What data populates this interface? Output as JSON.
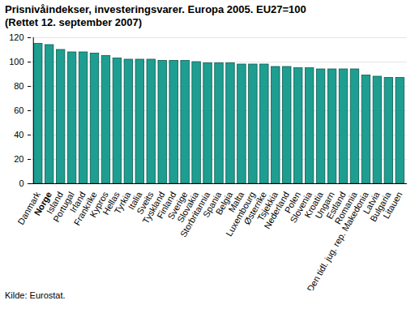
{
  "chart_data": {
    "type": "bar",
    "title": "Prisnivåindekser, investeringsvarer. Europa 2005. EU27=100",
    "subtitle": "(Rettet 12. september 2007)",
    "caption": "Kilde: Eurostat.",
    "categories": [
      "Danmark",
      "Norge",
      "Island",
      "Portugal",
      "Irland",
      "Frankrike",
      "Kypros",
      "Hellas",
      "Tyrkia",
      "Italia",
      "Sveits",
      "Tyskland",
      "Finland",
      "Sverige",
      "Slovakia",
      "Storbritannia",
      "Spania",
      "Belgia",
      "Malta",
      "Luxembourg",
      "Østerrike",
      "Tsjekkia",
      "Nederland",
      "Polen",
      "Slovenia",
      "Kroatia",
      "Ungarn",
      "Estland",
      "Romania",
      "Den tidl. jug. rep. Makedonia",
      "Latvia",
      "Bulgaria",
      "Litauen"
    ],
    "values": [
      115,
      114,
      110,
      108,
      108,
      107,
      105,
      103,
      102,
      102,
      102,
      101,
      101,
      101,
      100,
      99,
      99,
      99,
      98,
      98,
      98,
      96,
      96,
      95,
      95,
      94,
      94,
      94,
      94,
      89,
      88,
      87,
      87
    ],
    "color": "#1e9e90",
    "ylim": [
      0,
      120
    ],
    "yticks": [
      0,
      20,
      40,
      60,
      80,
      100,
      120
    ],
    "grid": true
  }
}
